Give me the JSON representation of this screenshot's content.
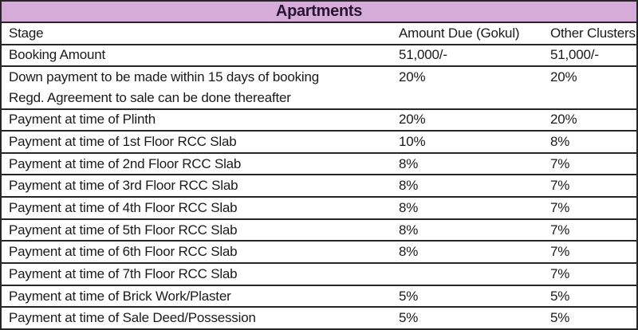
{
  "title": "Apartments",
  "colors": {
    "band_bg": "#d5abd8",
    "border": "#262626",
    "text": "#1a1a1a",
    "title_text": "#2a1530"
  },
  "table": {
    "headers": {
      "stage": "Stage",
      "gokul": "Amount Due (Gokul)",
      "other": "Other Clusters"
    },
    "rows": [
      {
        "stage": "Booking Amount",
        "stage2": "",
        "gokul": "51,000/-",
        "other": "51,000/-"
      },
      {
        "stage": "Down payment to be made within 15 days of booking",
        "stage2": "Regd. Agreement to sale can be done thereafter",
        "gokul": "20%",
        "other": "20%"
      },
      {
        "stage": "Payment at time of Plinth",
        "stage2": "",
        "gokul": "20%",
        "other": "20%"
      },
      {
        "stage": "Payment at time of 1st Floor RCC Slab",
        "stage2": "",
        "gokul": "10%",
        "other": "8%"
      },
      {
        "stage": "Payment at time of 2nd Floor RCC Slab",
        "stage2": "",
        "gokul": "8%",
        "other": "7%"
      },
      {
        "stage": "Payment at time of 3rd Floor RCC Slab",
        "stage2": "",
        "gokul": "8%",
        "other": "7%"
      },
      {
        "stage": "Payment at time of 4th Floor RCC Slab",
        "stage2": "",
        "gokul": "8%",
        "other": "7%"
      },
      {
        "stage": "Payment at time of 5th Floor RCC Slab",
        "stage2": "",
        "gokul": "8%",
        "other": "7%"
      },
      {
        "stage": "Payment at time of 6th Floor RCC Slab",
        "stage2": "",
        "gokul": "8%",
        "other": "7%"
      },
      {
        "stage": "Payment at time of 7th Floor RCC Slab",
        "stage2": "",
        "gokul": "",
        "other": "7%"
      },
      {
        "stage": "Payment at time of Brick Work/Plaster",
        "stage2": "",
        "gokul": "5%",
        "other": "5%"
      },
      {
        "stage": "Payment at time of Sale Deed/Possession",
        "stage2": "",
        "gokul": "5%",
        "other": "5%"
      }
    ]
  }
}
